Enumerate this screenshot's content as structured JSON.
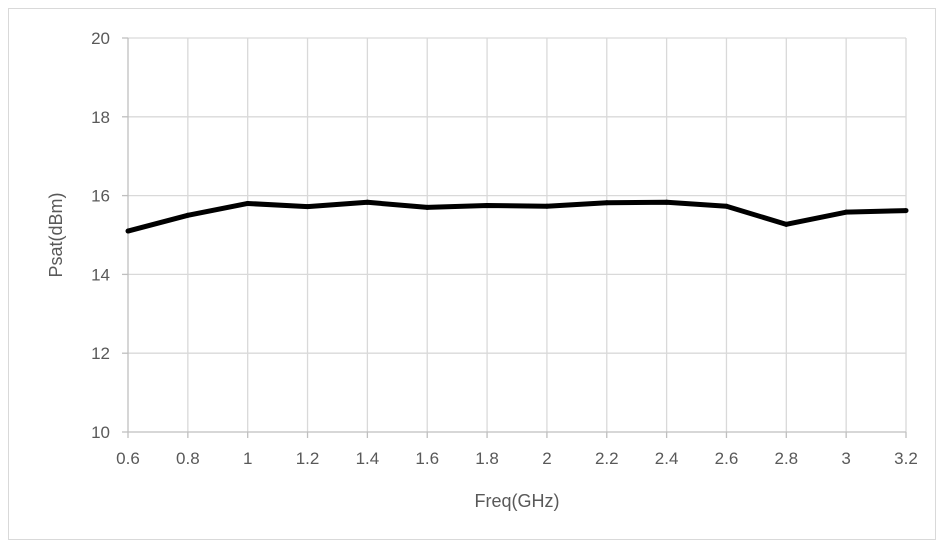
{
  "chart_data": {
    "type": "line",
    "title": "",
    "xlabel": "Freq(GHz)",
    "ylabel": "Psat(dBm)",
    "x": [
      0.6,
      0.8,
      1.0,
      1.2,
      1.4,
      1.6,
      1.8,
      2.0,
      2.2,
      2.4,
      2.6,
      2.8,
      3.0,
      3.2
    ],
    "x_tick_labels": [
      "0.6",
      "0.8",
      "1",
      "1.2",
      "1.4",
      "1.6",
      "1.8",
      "2",
      "2.2",
      "2.4",
      "2.6",
      "2.8",
      "3",
      "3.2"
    ],
    "y_tick_labels": [
      "10",
      "12",
      "14",
      "16",
      "18",
      "20"
    ],
    "y_ticks": [
      10,
      12,
      14,
      16,
      18,
      20
    ],
    "xlim": [
      0.6,
      3.2
    ],
    "ylim": [
      10,
      20
    ],
    "grid": true,
    "legend": "none",
    "series": [
      {
        "values": [
          15.1,
          15.5,
          15.8,
          15.72,
          15.83,
          15.7,
          15.75,
          15.73,
          15.82,
          15.83,
          15.73,
          15.27,
          15.58,
          15.62
        ],
        "color": "#000000"
      }
    ]
  }
}
